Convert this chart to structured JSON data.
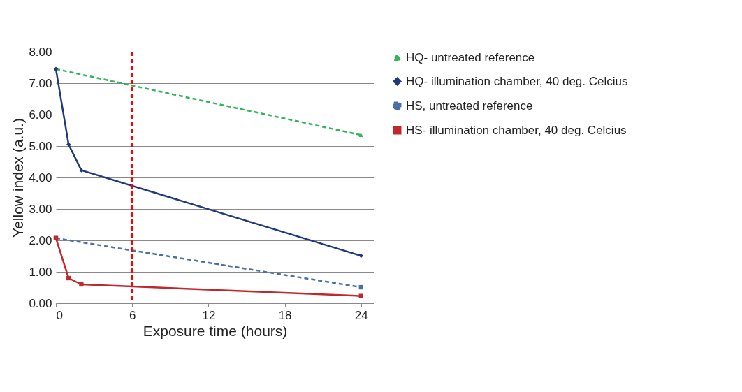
{
  "chart_data": {
    "type": "line",
    "xlabel": "Exposure time (hours)",
    "ylabel": "Yellow index (a.u.)",
    "xlim": [
      0,
      25
    ],
    "xticks": [
      0,
      6,
      12,
      18,
      24
    ],
    "ylim": [
      0,
      8
    ],
    "yticks": [
      {
        "value": 0,
        "label": "0.00"
      },
      {
        "value": 1,
        "label": "1.00"
      },
      {
        "value": 2,
        "label": "2.00"
      },
      {
        "value": 3,
        "label": "3.00"
      },
      {
        "value": 4,
        "label": "4.00"
      },
      {
        "value": 5,
        "label": "5.00"
      },
      {
        "value": 6,
        "label": "6.00"
      },
      {
        "value": 7,
        "label": "7.00"
      },
      {
        "value": 8,
        "label": "8.00"
      }
    ],
    "grid": "y",
    "legend": "right",
    "series": [
      {
        "name": "HQ- untreated reference",
        "color": "#33b35a",
        "x": [
          0,
          24
        ],
        "values": [
          7.45,
          5.35
        ],
        "marker": "triangle",
        "line_style": "dashed"
      },
      {
        "name": "HQ- illumination chamber, 40 deg. Celcius",
        "color": "#1f3a7a",
        "x": [
          0,
          1,
          2,
          24
        ],
        "values": [
          7.45,
          5.05,
          4.23,
          1.51
        ],
        "marker": "diamond",
        "line_style": "solid"
      },
      {
        "name": "HS, untreated reference",
        "color": "#4a6fa5",
        "x": [
          0,
          24
        ],
        "values": [
          2.07,
          0.51
        ],
        "marker": "square",
        "line_style": "dashed"
      },
      {
        "name": "HS- illumination chamber, 40 deg. Celcius",
        "color": "#c0282d",
        "x": [
          0,
          1,
          2,
          24
        ],
        "values": [
          2.07,
          0.8,
          0.6,
          0.23
        ],
        "marker": "square",
        "line_style": "solid"
      }
    ],
    "ref_lines": [
      {
        "axis": "x",
        "value": 6,
        "color": "#ff0000",
        "line_style": "dashed"
      }
    ]
  }
}
